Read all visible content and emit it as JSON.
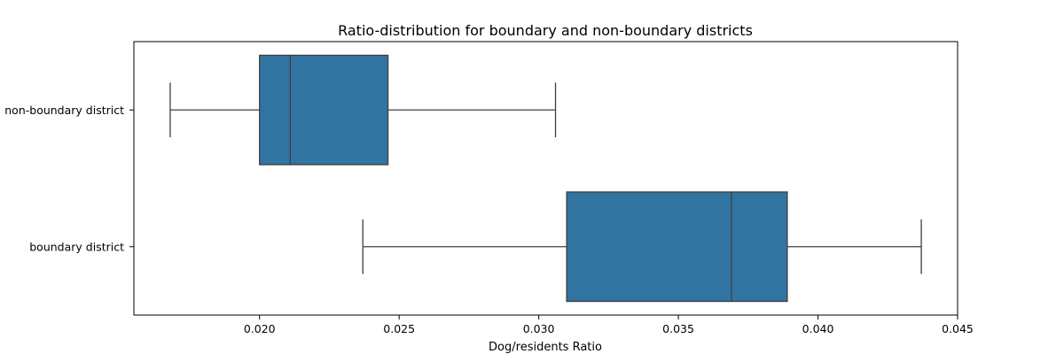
{
  "chart_data": {
    "type": "boxplot",
    "orientation": "horizontal",
    "title": "Ratio-distribution for boundary and non-boundary districts",
    "xlabel": "Dog/residents Ratio",
    "ylabel": "",
    "xlim": [
      0.0155,
      0.045
    ],
    "x_ticks": [
      "0.020",
      "0.025",
      "0.030",
      "0.035",
      "0.040",
      "0.045"
    ],
    "x_tick_values": [
      0.02,
      0.025,
      0.03,
      0.035,
      0.04,
      0.045
    ],
    "categories": [
      "non-boundary district",
      "boundary district"
    ],
    "boxes": [
      {
        "category": "non-boundary district",
        "whisker_low": 0.0168,
        "q1": 0.02,
        "median": 0.0211,
        "q3": 0.0246,
        "whisker_high": 0.0306
      },
      {
        "category": "boundary district",
        "whisker_low": 0.0237,
        "q1": 0.031,
        "median": 0.0369,
        "q3": 0.0389,
        "whisker_high": 0.0437
      }
    ],
    "box_color": "#3274a1",
    "line_color": "#3f3f3f",
    "grid": false,
    "legend": "none"
  }
}
